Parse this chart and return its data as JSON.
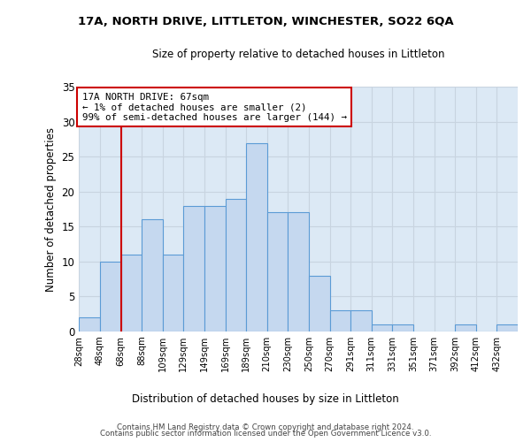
{
  "title": "17A, NORTH DRIVE, LITTLETON, WINCHESTER, SO22 6QA",
  "subtitle": "Size of property relative to detached houses in Littleton",
  "xlabel": "Distribution of detached houses by size in Littleton",
  "ylabel": "Number of detached properties",
  "bar_values": [
    2,
    10,
    11,
    16,
    11,
    18,
    18,
    19,
    27,
    17,
    17,
    8,
    3,
    3,
    1,
    1,
    0,
    0,
    1,
    0,
    1
  ],
  "bin_labels": [
    "28sqm",
    "48sqm",
    "68sqm",
    "88sqm",
    "109sqm",
    "129sqm",
    "149sqm",
    "169sqm",
    "189sqm",
    "210sqm",
    "230sqm",
    "250sqm",
    "270sqm",
    "291sqm",
    "311sqm",
    "331sqm",
    "351sqm",
    "371sqm",
    "392sqm",
    "412sqm",
    "432sqm"
  ],
  "n_bins": 21,
  "bar_color": "#c5d8ef",
  "bar_edge_color": "#5b9bd5",
  "property_line_x": 2,
  "annotation_title": "17A NORTH DRIVE: 67sqm",
  "annotation_line1": "← 1% of detached houses are smaller (2)",
  "annotation_line2": "99% of semi-detached houses are larger (144) →",
  "annotation_box_color": "#ffffff",
  "annotation_border_color": "#cc0000",
  "vline_color": "#cc0000",
  "grid_color": "#c8d4e0",
  "background_color": "#dce9f5",
  "ylim": [
    0,
    35
  ],
  "yticks": [
    0,
    5,
    10,
    15,
    20,
    25,
    30,
    35
  ],
  "footer1": "Contains HM Land Registry data © Crown copyright and database right 2024.",
  "footer2": "Contains public sector information licensed under the Open Government Licence v3.0."
}
